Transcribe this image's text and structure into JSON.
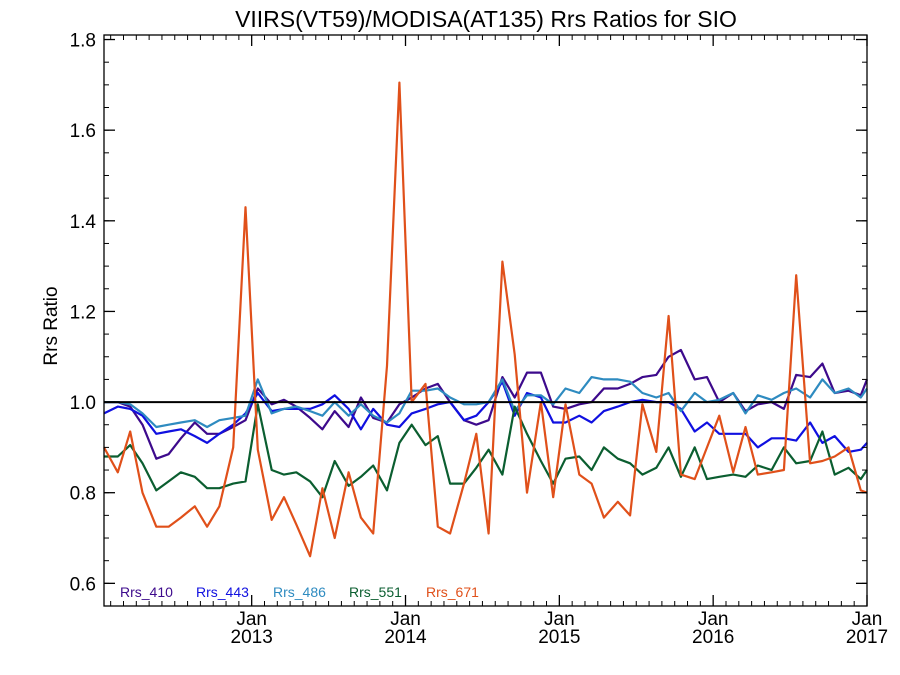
{
  "chart_data": {
    "type": "line",
    "title": "VIIRS(VT59)/MODISA(AT135)  Rrs Ratios for SIO",
    "xlabel": "",
    "ylabel": "Rrs Ratio",
    "x_unit": "year (decimal)",
    "xlim": [
      2012.04,
      2017.0
    ],
    "ylim": [
      0.55,
      1.81
    ],
    "yticks": [
      0.6,
      0.8,
      1.0,
      1.2,
      1.4,
      1.6,
      1.8
    ],
    "ytick_labels": [
      "0.6",
      "0.8",
      "1.0",
      "1.2",
      "1.4",
      "1.6",
      "1.8"
    ],
    "xticks": [
      {
        "x": 2013.0,
        "line1": "Jan",
        "line2": "2013"
      },
      {
        "x": 2014.0,
        "line1": "Jan",
        "line2": "2014"
      },
      {
        "x": 2015.0,
        "line1": "Jan",
        "line2": "2015"
      },
      {
        "x": 2016.0,
        "line1": "Jan",
        "line2": "2016"
      },
      {
        "x": 2017.0,
        "line1": "Jan",
        "line2": "2017"
      }
    ],
    "reference_line": 1.0,
    "legend_position": "bottom-left",
    "grid": false,
    "x": [
      2012.04,
      2012.13,
      2012.21,
      2012.29,
      2012.38,
      2012.46,
      2012.54,
      2012.63,
      2012.71,
      2012.79,
      2012.88,
      2012.96,
      2013.04,
      2013.13,
      2013.21,
      2013.29,
      2013.38,
      2013.46,
      2013.54,
      2013.63,
      2013.71,
      2013.79,
      2013.88,
      2013.96,
      2014.04,
      2014.13,
      2014.21,
      2014.29,
      2014.38,
      2014.46,
      2014.54,
      2014.63,
      2014.71,
      2014.79,
      2014.88,
      2014.96,
      2015.04,
      2015.13,
      2015.21,
      2015.29,
      2015.38,
      2015.46,
      2015.54,
      2015.63,
      2015.71,
      2015.79,
      2015.88,
      2015.96,
      2016.04,
      2016.13,
      2016.21,
      2016.29,
      2016.38,
      2016.46,
      2016.54,
      2016.63,
      2016.71,
      2016.79,
      2016.88,
      2016.96,
      2017.0
    ],
    "series": [
      {
        "name": "Rrs_410",
        "color": "#3d0a8c",
        "values": [
          1.0,
          1.0,
          0.99,
          0.95,
          0.875,
          0.885,
          0.92,
          0.955,
          0.93,
          0.93,
          0.945,
          0.96,
          1.03,
          0.995,
          1.005,
          0.99,
          0.965,
          0.94,
          0.98,
          0.945,
          1.01,
          0.965,
          0.955,
          0.995,
          1.01,
          1.03,
          1.04,
          1.0,
          0.96,
          0.95,
          0.96,
          1.055,
          1.01,
          1.065,
          1.065,
          0.99,
          0.985,
          0.995,
          1.0,
          1.03,
          1.03,
          1.04,
          1.055,
          1.06,
          1.1,
          1.115,
          1.05,
          1.055,
          1.0,
          1.02,
          0.98,
          0.995,
          1.0,
          0.985,
          1.06,
          1.055,
          1.085,
          1.02,
          1.025,
          1.015,
          1.05
        ]
      },
      {
        "name": "Rrs_443",
        "color": "#1010e0",
        "values": [
          0.975,
          0.99,
          0.985,
          0.97,
          0.93,
          0.935,
          0.94,
          0.925,
          0.91,
          0.93,
          0.95,
          0.975,
          1.02,
          0.98,
          0.985,
          0.985,
          0.985,
          0.995,
          1.015,
          0.985,
          0.94,
          0.985,
          0.95,
          0.945,
          0.975,
          0.985,
          0.995,
          1.0,
          0.96,
          0.97,
          1.0,
          1.045,
          0.97,
          1.02,
          1.01,
          0.955,
          0.955,
          0.97,
          0.955,
          0.98,
          0.99,
          1.0,
          1.005,
          1.0,
          1.0,
          0.985,
          0.935,
          0.955,
          0.93,
          0.93,
          0.93,
          0.9,
          0.92,
          0.92,
          0.915,
          0.955,
          0.91,
          0.925,
          0.89,
          0.895,
          0.91
        ]
      },
      {
        "name": "Rrs_486",
        "color": "#2e8bc0",
        "values": [
          1.0,
          1.0,
          0.995,
          0.975,
          0.945,
          0.95,
          0.955,
          0.96,
          0.945,
          0.96,
          0.965,
          0.97,
          1.05,
          0.975,
          0.985,
          0.99,
          0.98,
          0.97,
          1.0,
          0.97,
          0.995,
          0.97,
          0.955,
          0.975,
          1.025,
          1.025,
          1.03,
          1.01,
          0.995,
          0.995,
          1.0,
          1.05,
          0.98,
          1.015,
          1.015,
          0.995,
          1.03,
          1.02,
          1.055,
          1.05,
          1.05,
          1.045,
          1.02,
          1.01,
          1.02,
          0.98,
          1.02,
          1.0,
          1.005,
          1.02,
          0.975,
          1.015,
          1.005,
          1.02,
          1.03,
          1.01,
          1.05,
          1.02,
          1.03,
          1.01,
          1.03
        ]
      },
      {
        "name": "Rrs_551",
        "color": "#0b5e30",
        "values": [
          0.88,
          0.88,
          0.905,
          0.865,
          0.805,
          0.825,
          0.845,
          0.835,
          0.81,
          0.81,
          0.82,
          0.825,
          0.995,
          0.85,
          0.84,
          0.845,
          0.825,
          0.79,
          0.87,
          0.815,
          0.835,
          0.86,
          0.805,
          0.91,
          0.95,
          0.905,
          0.925,
          0.82,
          0.82,
          0.855,
          0.895,
          0.84,
          0.99,
          0.93,
          0.87,
          0.82,
          0.875,
          0.88,
          0.85,
          0.9,
          0.875,
          0.865,
          0.84,
          0.855,
          0.9,
          0.835,
          0.9,
          0.83,
          0.835,
          0.84,
          0.835,
          0.86,
          0.85,
          0.9,
          0.865,
          0.87,
          0.935,
          0.84,
          0.855,
          0.83,
          0.85
        ]
      },
      {
        "name": "Rrs_671",
        "color": "#e0501a",
        "values": [
          0.9,
          0.845,
          0.935,
          0.8,
          0.725,
          0.725,
          0.745,
          0.77,
          0.725,
          0.77,
          0.9,
          1.43,
          0.895,
          0.74,
          0.79,
          0.73,
          0.66,
          0.81,
          0.7,
          0.845,
          0.745,
          0.71,
          1.08,
          1.705,
          1.0,
          1.04,
          0.725,
          0.71,
          0.82,
          0.93,
          0.71,
          1.31,
          1.105,
          0.8,
          1.0,
          0.79,
          0.995,
          0.84,
          0.82,
          0.745,
          0.78,
          0.75,
          0.995,
          0.89,
          1.19,
          0.84,
          0.83,
          0.9,
          0.97,
          0.845,
          0.945,
          0.84,
          0.845,
          0.85,
          1.28,
          0.865,
          0.87,
          0.88,
          0.9,
          0.805,
          0.8
        ]
      }
    ]
  }
}
